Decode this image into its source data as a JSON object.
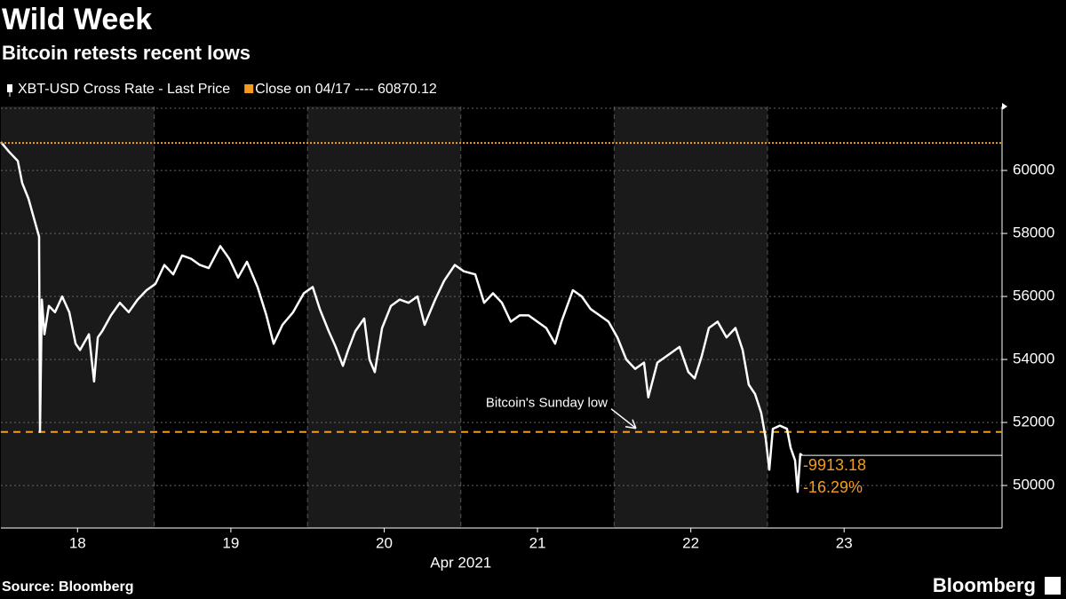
{
  "chart_data": {
    "type": "line",
    "title": "Wild Week",
    "subtitle": "Bitcoin retests recent lows",
    "xlabel": "Apr 2021",
    "source": "Source: Bloomberg",
    "brand": "Bloomberg",
    "grid": true,
    "xlim": [
      18,
      24.53
    ],
    "ylim": [
      48650,
      62030
    ],
    "yticks": [
      50000,
      52000,
      54000,
      56000,
      58000,
      60000
    ],
    "xticks": [
      {
        "value": 18.5,
        "label": "18"
      },
      {
        "value": 19.5,
        "label": "19"
      },
      {
        "value": 20.5,
        "label": "20"
      },
      {
        "value": 21.5,
        "label": "21"
      },
      {
        "value": 22.5,
        "label": "22"
      },
      {
        "value": 23.5,
        "label": "23"
      }
    ],
    "series": [
      {
        "name": "XBT-USD Cross Rate - Last Price",
        "color": "#ffffff",
        "x": [
          18.0,
          18.052,
          18.11,
          18.139,
          18.18,
          18.226,
          18.249,
          18.255,
          18.267,
          18.284,
          18.313,
          18.353,
          18.4,
          18.446,
          18.487,
          18.516,
          18.574,
          18.608,
          18.632,
          18.661,
          18.718,
          18.776,
          18.834,
          18.892,
          18.95,
          19.008,
          19.066,
          19.124,
          19.182,
          19.24,
          19.298,
          19.356,
          19.431,
          19.489,
          19.547,
          19.605,
          19.674,
          19.732,
          19.779,
          19.837,
          19.906,
          19.976,
          20.034,
          20.08,
          20.138,
          20.184,
          20.231,
          20.265,
          20.312,
          20.37,
          20.404,
          20.439,
          20.486,
          20.544,
          20.601,
          20.659,
          20.717,
          20.764,
          20.833,
          20.891,
          20.961,
          21.019,
          21.094,
          21.152,
          21.21,
          21.268,
          21.326,
          21.384,
          21.442,
          21.499,
          21.557,
          21.615,
          21.656,
          21.731,
          21.789,
          21.847,
          21.905,
          21.963,
          22.021,
          22.079,
          22.137,
          22.195,
          22.223,
          22.282,
          22.369,
          22.426,
          22.484,
          22.525,
          22.571,
          22.618,
          22.675,
          22.733,
          22.791,
          22.838,
          22.878,
          22.919,
          22.959,
          22.988,
          23.012,
          23.035,
          23.081,
          23.127,
          23.151,
          23.18,
          23.197,
          23.214,
          23.226
        ],
        "values": [
          60900,
          60600,
          60300,
          59600,
          59100,
          58300,
          57900,
          51700,
          55900,
          54800,
          55700,
          55500,
          56000,
          55500,
          54500,
          54300,
          54800,
          53300,
          54700,
          54900,
          55400,
          55800,
          55500,
          55900,
          56200,
          56400,
          57000,
          56700,
          57300,
          57200,
          57000,
          56900,
          57600,
          57200,
          56600,
          57100,
          56300,
          55400,
          54500,
          55100,
          55500,
          56100,
          56300,
          55600,
          54900,
          54400,
          53800,
          54300,
          54900,
          55300,
          54000,
          53600,
          55000,
          55700,
          55900,
          55800,
          56000,
          55100,
          55900,
          56500,
          57000,
          56800,
          56700,
          55800,
          56100,
          55800,
          55200,
          55400,
          55400,
          55200,
          55000,
          54500,
          55200,
          56200,
          56000,
          55600,
          55400,
          55200,
          54700,
          54000,
          53700,
          53900,
          52800,
          53900,
          54200,
          54400,
          53600,
          53400,
          54100,
          55000,
          55200,
          54700,
          55000,
          54300,
          53200,
          52900,
          52300,
          51500,
          50500,
          51800,
          51900,
          51800,
          51200,
          50800,
          49800,
          51000,
          50956.94
        ]
      },
      {
        "name": "Close on 04/17 ---- 60870.12",
        "color": "#f39c1f",
        "style": "dotted",
        "constant": 60870.12
      }
    ],
    "reference_line": {
      "value": 51700,
      "color": "#f39c1f",
      "label": "Bitcoin's Sunday low"
    },
    "change_labels": [
      "-9913.18",
      "-16.29%"
    ],
    "change_color": "#f39c1f"
  }
}
